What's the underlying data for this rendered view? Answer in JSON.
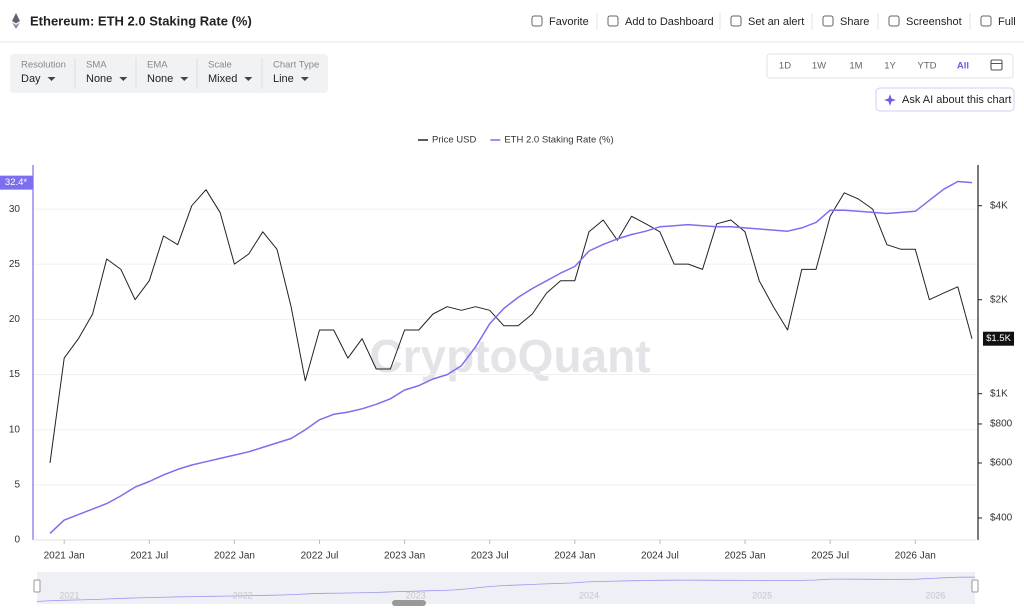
{
  "header": {
    "title": "Ethereum: ETH 2.0 Staking Rate (%)",
    "actions": [
      "Favorite",
      "Add to Dashboard",
      "Set an alert",
      "Share",
      "Screenshot",
      "Full"
    ]
  },
  "controls": [
    {
      "label": "Resolution",
      "value": "Day"
    },
    {
      "label": "SMA",
      "value": "None"
    },
    {
      "label": "EMA",
      "value": "None"
    },
    {
      "label": "Scale",
      "value": "Mixed"
    },
    {
      "label": "Chart Type",
      "value": "Line"
    }
  ],
  "ranges": [
    "1D",
    "1W",
    "1M",
    "1Y",
    "YTD",
    "All"
  ],
  "active_range": "All",
  "ask_ai": "Ask AI about this chart",
  "watermark": "CryptoQuant",
  "chart_data": {
    "type": "line",
    "x": [
      "2020-12",
      "2021-01",
      "2021-02",
      "2021-03",
      "2021-04",
      "2021-05",
      "2021-06",
      "2021-07",
      "2021-08",
      "2021-09",
      "2021-10",
      "2021-11",
      "2021-12",
      "2022-01",
      "2022-02",
      "2022-03",
      "2022-04",
      "2022-05",
      "2022-06",
      "2022-07",
      "2022-08",
      "2022-09",
      "2022-10",
      "2022-11",
      "2022-12",
      "2023-01",
      "2023-02",
      "2023-03",
      "2023-04",
      "2023-05",
      "2023-06",
      "2023-07",
      "2023-08",
      "2023-09",
      "2023-10",
      "2023-11",
      "2023-12",
      "2024-01",
      "2024-02",
      "2024-03",
      "2024-04",
      "2024-05",
      "2024-06",
      "2024-07",
      "2024-08",
      "2024-09",
      "2024-10",
      "2024-11",
      "2024-12",
      "2025-01",
      "2025-02",
      "2025-03",
      "2025-04",
      "2025-05",
      "2025-06",
      "2025-07",
      "2025-08",
      "2025-09",
      "2025-10",
      "2025-11",
      "2025-12",
      "2026-01",
      "2026-02",
      "2026-03",
      "2026-04",
      "2026-05"
    ],
    "series": [
      {
        "name": "Price USD",
        "color": "#222222",
        "axis": "y2",
        "values": [
          600,
          1300,
          1500,
          1800,
          2700,
          2500,
          2000,
          2300,
          3200,
          3000,
          4000,
          4500,
          3800,
          2600,
          2800,
          3300,
          2900,
          1900,
          1100,
          1600,
          1600,
          1300,
          1500,
          1200,
          1200,
          1600,
          1600,
          1800,
          1900,
          1850,
          1900,
          1850,
          1650,
          1650,
          1800,
          2100,
          2300,
          2300,
          3300,
          3600,
          3100,
          3700,
          3500,
          3300,
          2600,
          2600,
          2500,
          3500,
          3600,
          3300,
          2300,
          1900,
          1600,
          2500,
          2500,
          3700,
          4400,
          4200,
          3900,
          3000,
          2900,
          2900,
          2000,
          2100,
          2200,
          1500
        ],
        "last_value": {
          "value": 1500,
          "label": "$1.5K"
        }
      },
      {
        "name": "ETH 2.0 Staking Rate (%)",
        "color": "#7b6ff0",
        "values": [
          0.6,
          1.8,
          2.3,
          2.8,
          3.3,
          4.0,
          4.8,
          5.3,
          5.9,
          6.4,
          6.8,
          7.1,
          7.4,
          7.7,
          8.0,
          8.4,
          8.8,
          9.2,
          10.0,
          10.9,
          11.4,
          11.6,
          11.9,
          12.3,
          12.8,
          13.6,
          14.0,
          14.6,
          15.0,
          15.8,
          17.5,
          19.6,
          21.0,
          22.0,
          22.8,
          23.5,
          24.2,
          24.8,
          26.2,
          26.8,
          27.3,
          27.7,
          28.0,
          28.4,
          28.5,
          28.6,
          28.5,
          28.4,
          28.4,
          28.3,
          28.2,
          28.1,
          28.0,
          28.3,
          28.8,
          29.9,
          29.9,
          29.8,
          29.7,
          29.6,
          29.7,
          29.8,
          30.8,
          31.8,
          32.5,
          32.4
        ],
        "last_value": {
          "value": 32.4,
          "label": "32.4*"
        }
      }
    ],
    "ylim": [
      0,
      34
    ],
    "yticks": [
      0,
      5,
      10,
      15,
      20,
      25,
      30
    ],
    "y2lim": [
      340,
      5400
    ],
    "y2scale": "log",
    "y2ticks": [
      {
        "value": 400,
        "label": "$400"
      },
      {
        "value": 600,
        "label": "$600"
      },
      {
        "value": 800,
        "label": "$800"
      },
      {
        "value": 1000,
        "label": "$1K"
      },
      {
        "value": 2000,
        "label": "$2K"
      },
      {
        "value": 4000,
        "label": "$4K"
      }
    ],
    "xticks": [
      {
        "value": "2021-01",
        "label": "2021 Jan"
      },
      {
        "value": "2021-07",
        "label": "2021 Jul"
      },
      {
        "value": "2022-01",
        "label": "2022 Jan"
      },
      {
        "value": "2022-07",
        "label": "2022 Jul"
      },
      {
        "value": "2023-01",
        "label": "2023 Jan"
      },
      {
        "value": "2023-07",
        "label": "2023 Jul"
      },
      {
        "value": "2024-01",
        "label": "2024 Jan"
      },
      {
        "value": "2024-07",
        "label": "2024 Jul"
      },
      {
        "value": "2025-01",
        "label": "2025 Jan"
      },
      {
        "value": "2025-07",
        "label": "2025 Jul"
      },
      {
        "value": "2026-01",
        "label": "2026 Jan"
      }
    ],
    "navigator_ticks": [
      2021,
      2022,
      2023,
      2024,
      2025,
      2026
    ],
    "grid": true
  }
}
